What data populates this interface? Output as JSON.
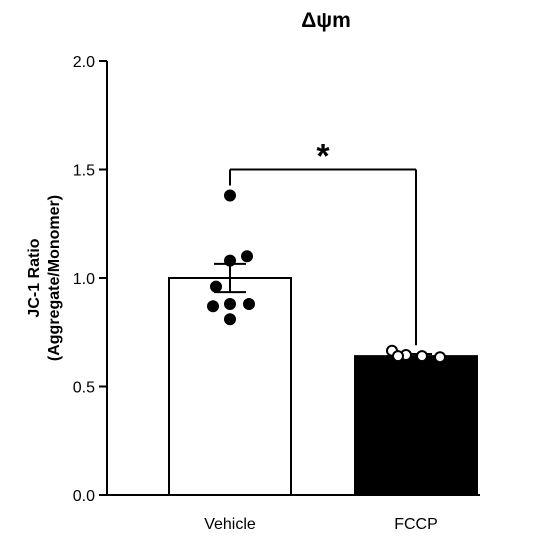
{
  "chart_data": {
    "type": "bar",
    "title": "Δψm",
    "xlabel": "",
    "ylabel_line1": "JC-1 Ratio",
    "ylabel_line2": "(Aggregate/Monomer)",
    "ylim": [
      0,
      2.0
    ],
    "yticks": [
      0.0,
      0.5,
      1.0,
      1.5,
      2.0
    ],
    "ytick_labels": [
      "0.0",
      "0.5",
      "1.0",
      "1.5",
      "2.0"
    ],
    "categories": [
      "Vehicle",
      "FCCP"
    ],
    "values": [
      1.0,
      0.64
    ],
    "sem": [
      0.065,
      0.01
    ],
    "bar_fill": [
      "#ffffff",
      "#000000"
    ],
    "points": [
      [
        1.38,
        1.1,
        1.08,
        0.96,
        0.88,
        0.88,
        0.87,
        0.81
      ],
      [
        0.665,
        0.645,
        0.64,
        0.635,
        0.64
      ]
    ],
    "point_fill": [
      "#000000",
      "#ffffff"
    ],
    "point_stroke": [
      "#000000",
      "#000000"
    ],
    "significance": {
      "label": "*",
      "between": [
        0,
        1
      ],
      "bracket_y": 1.5
    },
    "grid": false
  }
}
